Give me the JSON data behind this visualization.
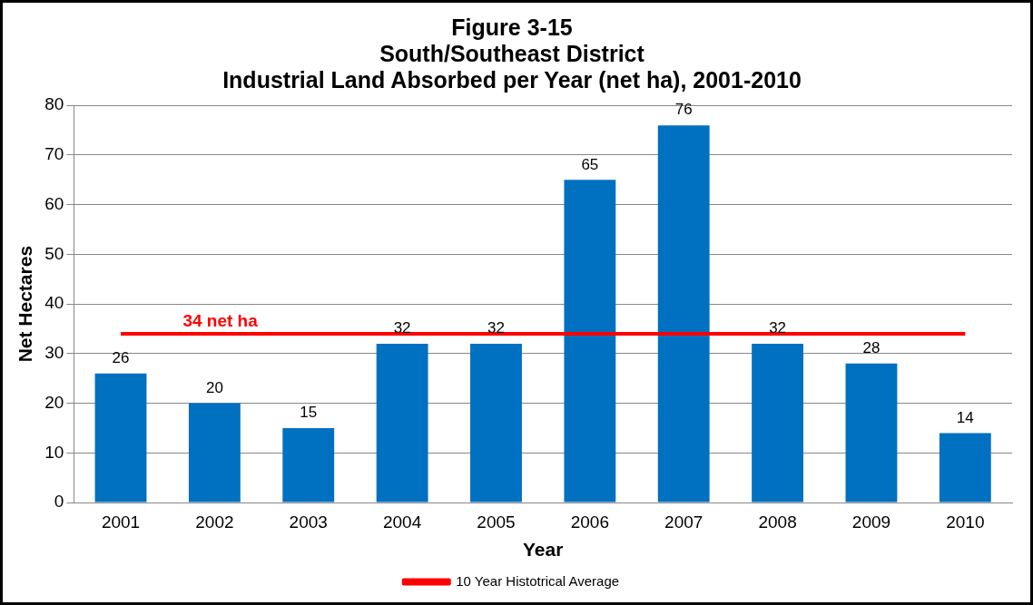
{
  "chart_data": {
    "type": "bar",
    "title": "Figure 3-15\nSouth/Southeast District\nIndustrial Land Absorbed per Year (net ha), 2001-2010",
    "xlabel": "Year",
    "ylabel": "Net Hectares",
    "categories": [
      "2001",
      "2002",
      "2003",
      "2004",
      "2005",
      "2006",
      "2007",
      "2008",
      "2009",
      "2010"
    ],
    "series": [
      {
        "color": "#0070c0",
        "values": [
          26,
          20,
          15,
          32,
          32,
          65,
          76,
          32,
          28,
          14
        ],
        "value_labels": [
          "26",
          "20",
          "15",
          "32",
          "32",
          "65",
          "76",
          "32",
          "28",
          "14"
        ]
      },
      {
        "type": "line",
        "name": "10 Year Histotrical Average",
        "color": "#ff0000",
        "values": [
          34,
          34,
          34,
          34,
          34,
          34,
          34,
          34,
          34,
          34
        ]
      }
    ],
    "annotations": [
      {
        "text": "34 net ha",
        "x": "2002",
        "y": 34
      }
    ],
    "ylim": [
      0,
      80
    ],
    "yticks": [
      0,
      10,
      20,
      30,
      40,
      50,
      60,
      70,
      80
    ],
    "grid": "y",
    "legend": "bottom",
    "marker": "none"
  }
}
